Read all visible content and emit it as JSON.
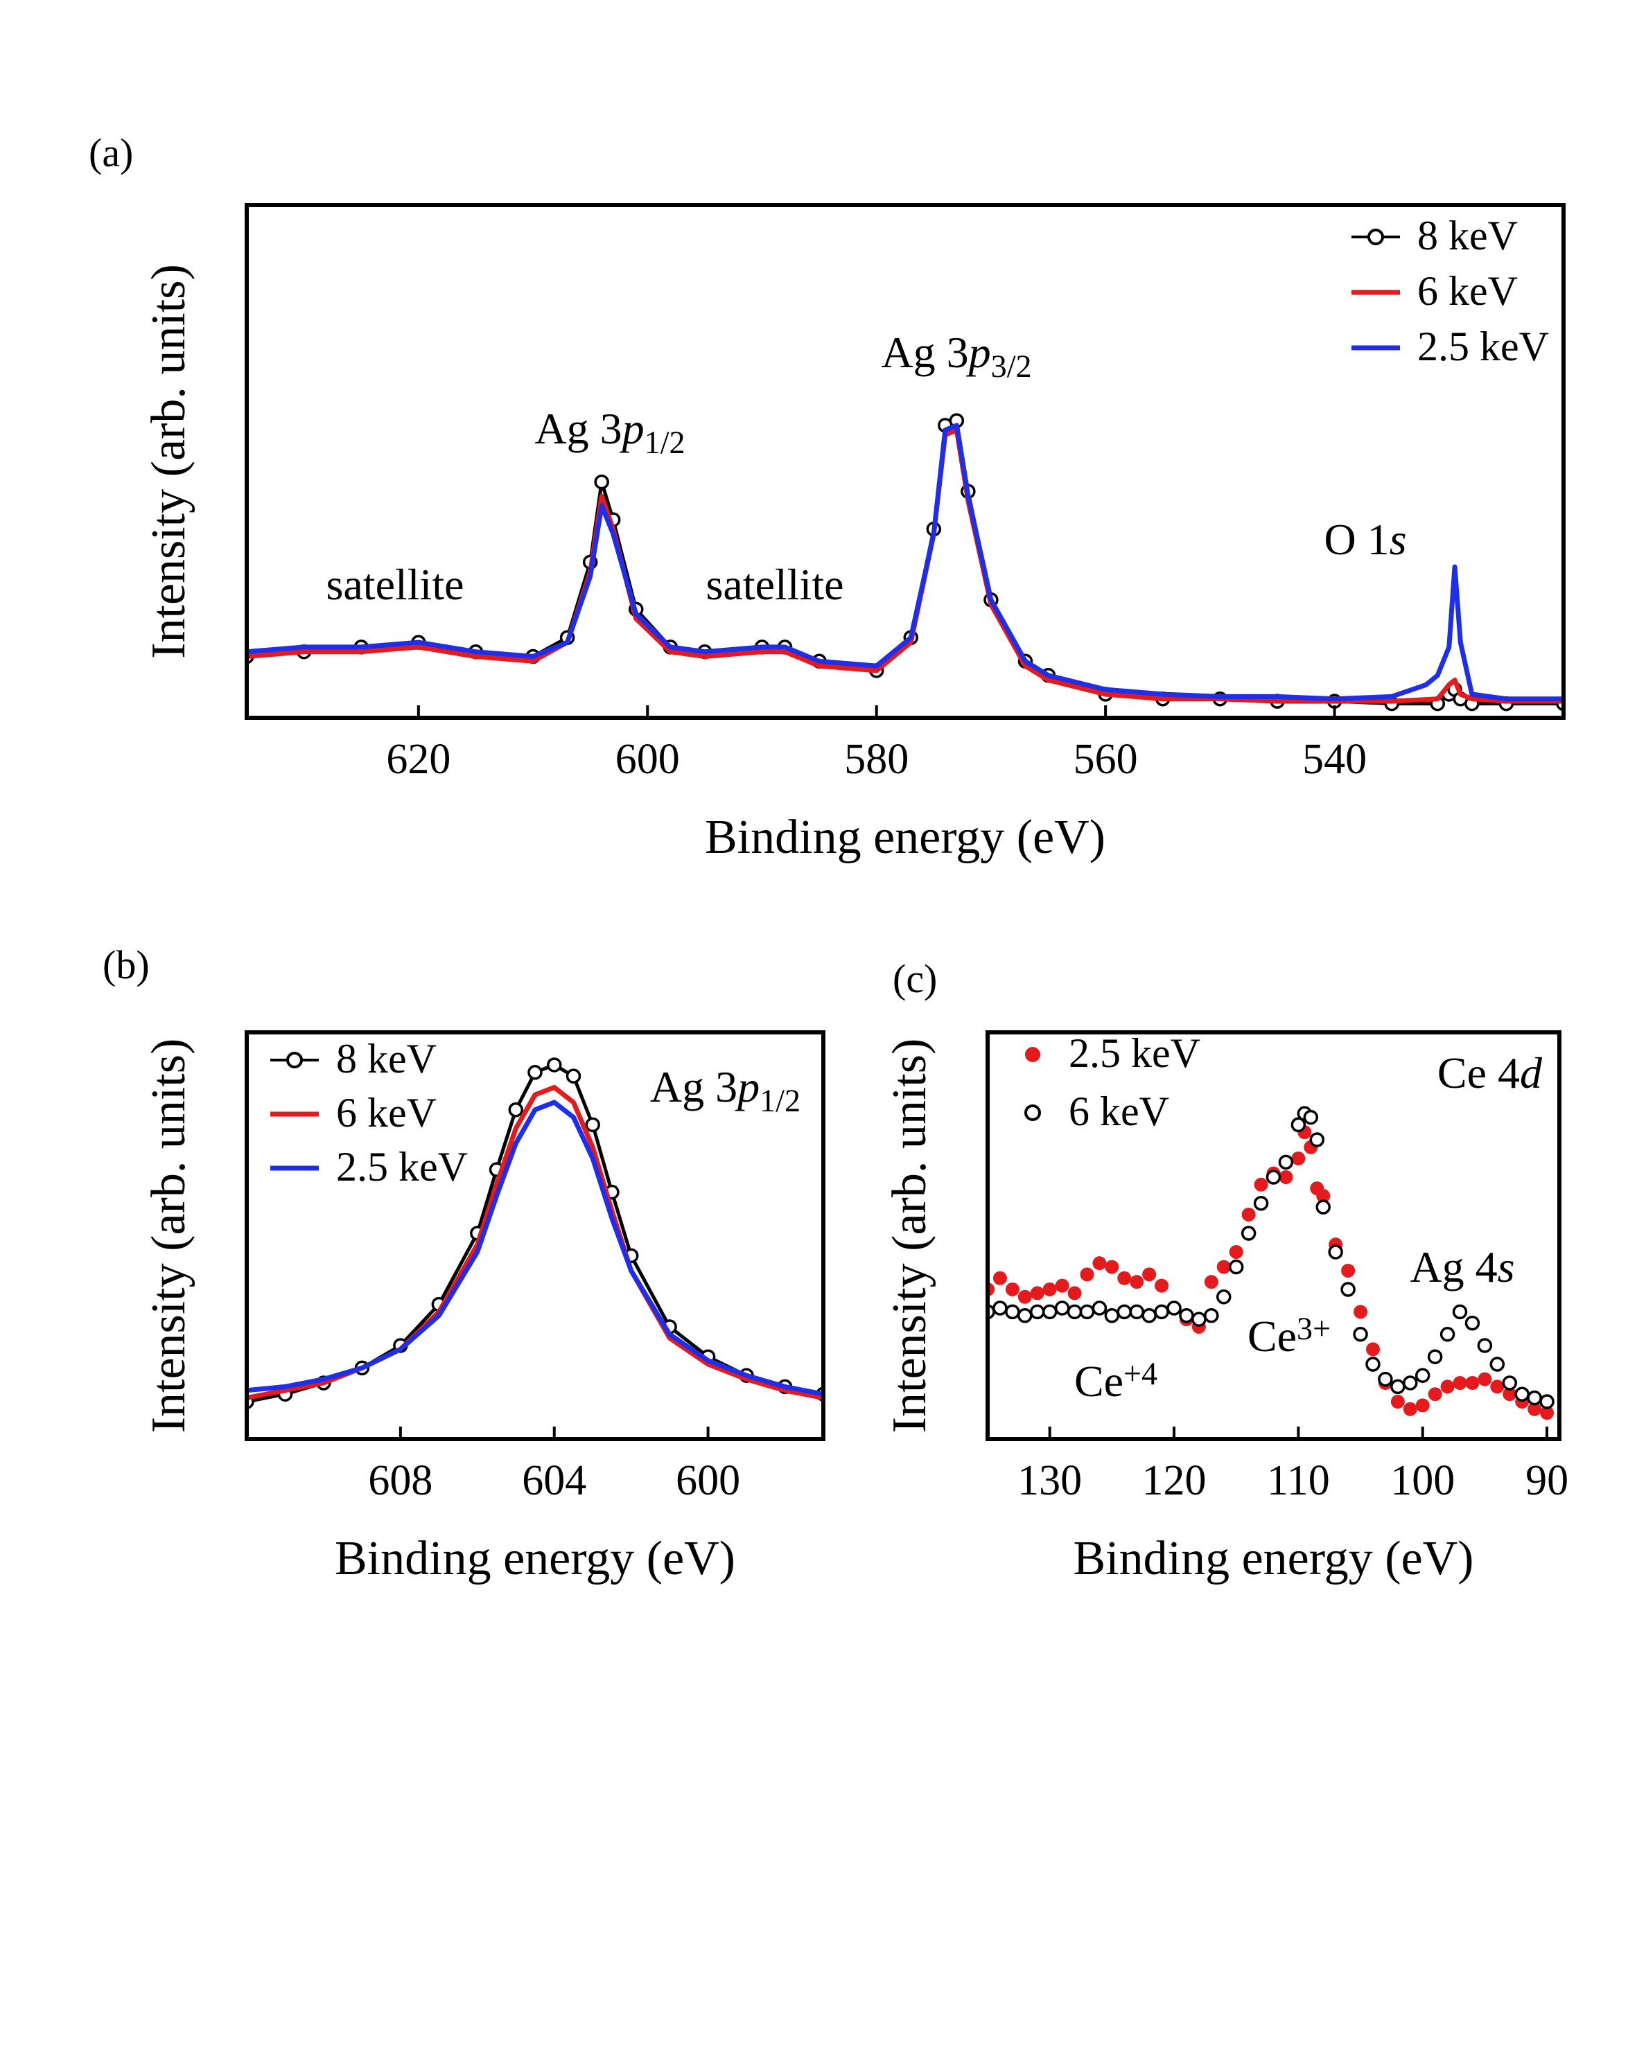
{
  "chart_data": [
    {
      "id": "a",
      "type": "line",
      "panel_label": "(a)",
      "xlabel": "Binding energy (eV)",
      "ylabel": "Intensity (arb. units)",
      "xlim": [
        635,
        520
      ],
      "ylim": [
        0,
        1
      ],
      "x_ticks": [
        620,
        600,
        580,
        560,
        540
      ],
      "x_tick_labels": [
        "620",
        "600",
        "580",
        "560",
        "540"
      ],
      "legend_position": "top-right",
      "series": [
        {
          "name": "8 keV",
          "label": "8 keV",
          "color": "#000000",
          "style": "open-circles-line",
          "x": [
            635,
            630,
            625,
            620,
            615,
            610,
            607,
            605,
            604,
            603,
            601,
            598,
            595,
            590,
            588,
            585,
            580,
            577,
            575,
            574,
            573,
            572,
            570,
            567,
            565,
            560,
            555,
            550,
            545,
            540,
            535,
            531,
            530,
            529.5,
            529,
            528,
            525,
            520
          ],
          "y": [
            0.13,
            0.14,
            0.15,
            0.16,
            0.14,
            0.13,
            0.17,
            0.33,
            0.5,
            0.42,
            0.23,
            0.15,
            0.14,
            0.15,
            0.15,
            0.12,
            0.1,
            0.17,
            0.4,
            0.62,
            0.63,
            0.48,
            0.25,
            0.12,
            0.09,
            0.05,
            0.04,
            0.04,
            0.035,
            0.035,
            0.03,
            0.03,
            0.05,
            0.06,
            0.04,
            0.03,
            0.03,
            0.03
          ]
        },
        {
          "name": "6 keV",
          "label": "6 keV",
          "color": "#e41a1c",
          "style": "line",
          "x": [
            635,
            630,
            625,
            620,
            615,
            610,
            607,
            605,
            604,
            603,
            601,
            598,
            595,
            590,
            588,
            585,
            580,
            577,
            575,
            574,
            573,
            572,
            570,
            567,
            565,
            560,
            555,
            550,
            545,
            540,
            535,
            531,
            530,
            529.5,
            529,
            528,
            525,
            520
          ],
          "y": [
            0.13,
            0.14,
            0.14,
            0.15,
            0.13,
            0.12,
            0.16,
            0.31,
            0.47,
            0.4,
            0.21,
            0.14,
            0.13,
            0.14,
            0.14,
            0.11,
            0.1,
            0.16,
            0.39,
            0.6,
            0.61,
            0.46,
            0.24,
            0.11,
            0.08,
            0.05,
            0.04,
            0.04,
            0.035,
            0.035,
            0.035,
            0.04,
            0.07,
            0.08,
            0.05,
            0.04,
            0.035,
            0.035
          ]
        },
        {
          "name": "2.5 keV",
          "label": "2.5 keV",
          "color": "#1f2ee8",
          "style": "line",
          "x": [
            635,
            630,
            625,
            620,
            615,
            610,
            607,
            605,
            604,
            603,
            601,
            598,
            595,
            590,
            588,
            585,
            580,
            577,
            575,
            574,
            573,
            572,
            570,
            567,
            565,
            560,
            555,
            550,
            545,
            540,
            535,
            532,
            531,
            530,
            529.5,
            529,
            528,
            525,
            520
          ],
          "y": [
            0.14,
            0.15,
            0.15,
            0.16,
            0.14,
            0.13,
            0.16,
            0.3,
            0.45,
            0.39,
            0.22,
            0.15,
            0.14,
            0.15,
            0.15,
            0.12,
            0.11,
            0.17,
            0.39,
            0.61,
            0.62,
            0.47,
            0.25,
            0.12,
            0.09,
            0.06,
            0.05,
            0.045,
            0.045,
            0.04,
            0.045,
            0.07,
            0.09,
            0.15,
            0.32,
            0.16,
            0.05,
            0.04,
            0.04
          ]
        }
      ],
      "annotations": [
        {
          "text": "satellite",
          "x": 620,
          "y": 0.22
        },
        {
          "text": "Ag 3",
          "italic": "p",
          "sub": "1/2",
          "x": 604,
          "y": 0.55
        },
        {
          "text": "satellite",
          "x": 587,
          "y": 0.22
        },
        {
          "text": "Ag 3",
          "italic": "p",
          "sub": "3/2",
          "x": 573,
          "y": 0.69
        },
        {
          "text": "O 1",
          "italic": "s",
          "x": 533,
          "y": 0.33
        }
      ]
    },
    {
      "id": "b",
      "type": "line",
      "panel_label": "(b)",
      "xlabel": "Binding energy (eV)",
      "ylabel": "Intensity (arb. units)",
      "xlim": [
        612,
        597
      ],
      "ylim": [
        0,
        1
      ],
      "x_ticks": [
        608,
        604,
        600
      ],
      "x_tick_labels": [
        "608",
        "604",
        "600"
      ],
      "legend_position": "top-left",
      "title_annotation": {
        "text": "Ag 3",
        "italic": "p",
        "sub": "1/2"
      },
      "series": [
        {
          "name": "8 keV",
          "label": "8 keV",
          "color": "#000000",
          "style": "open-circles-line",
          "x": [
            612,
            611,
            610,
            609,
            608,
            607,
            606,
            605.5,
            605,
            604.5,
            604,
            603.5,
            603,
            602.5,
            602,
            601,
            600,
            599,
            598,
            597
          ],
          "y": [
            0.1,
            0.12,
            0.15,
            0.19,
            0.25,
            0.36,
            0.55,
            0.72,
            0.88,
            0.98,
            1.0,
            0.97,
            0.84,
            0.66,
            0.49,
            0.3,
            0.22,
            0.17,
            0.14,
            0.12
          ]
        },
        {
          "name": "6 keV",
          "label": "6 keV",
          "color": "#e41a1c",
          "style": "line",
          "x": [
            612,
            611,
            610,
            609,
            608,
            607,
            606,
            605.5,
            605,
            604.5,
            604,
            603.5,
            603,
            602.5,
            602,
            601,
            600,
            599,
            598,
            597
          ],
          "y": [
            0.11,
            0.13,
            0.15,
            0.19,
            0.24,
            0.34,
            0.52,
            0.68,
            0.83,
            0.92,
            0.94,
            0.9,
            0.78,
            0.61,
            0.45,
            0.27,
            0.2,
            0.16,
            0.13,
            0.11
          ]
        },
        {
          "name": "2.5 keV",
          "label": "2.5 keV",
          "color": "#1f2ee8",
          "style": "line",
          "x": [
            612,
            611,
            610,
            609,
            608,
            607,
            606,
            605.5,
            605,
            604.5,
            604,
            603.5,
            603,
            602.5,
            602,
            601,
            600,
            599,
            598,
            597
          ],
          "y": [
            0.13,
            0.14,
            0.16,
            0.19,
            0.24,
            0.33,
            0.5,
            0.65,
            0.79,
            0.88,
            0.9,
            0.86,
            0.75,
            0.59,
            0.45,
            0.28,
            0.21,
            0.17,
            0.14,
            0.12
          ]
        }
      ]
    },
    {
      "id": "c",
      "type": "scatter",
      "panel_label": "(c)",
      "xlabel": "Binding energy (eV)",
      "ylabel": "Intensity (arb. units)",
      "xlim": [
        135,
        89
      ],
      "ylim": [
        0,
        1
      ],
      "x_ticks": [
        130,
        120,
        110,
        100,
        90
      ],
      "x_tick_labels": [
        "130",
        "120",
        "110",
        "100",
        "90"
      ],
      "legend_position": "top-left",
      "title_annotation": {
        "text": "Ce 4",
        "italic": "d"
      },
      "series": [
        {
          "name": "2.5 keV",
          "label": "2.5 keV",
          "color": "#e41a1c",
          "style": "filled-circles",
          "x": [
            135,
            134,
            133,
            132,
            131,
            130,
            129,
            128,
            127,
            126,
            125,
            124,
            123,
            122,
            121,
            120,
            119,
            118,
            117,
            116,
            115,
            114,
            113,
            112,
            111,
            110,
            109.5,
            109,
            108.5,
            108,
            107,
            106,
            105,
            104,
            103,
            102,
            101,
            100,
            99,
            98,
            97,
            96,
            95,
            94,
            93,
            92,
            91,
            90
          ],
          "y": [
            0.4,
            0.43,
            0.4,
            0.38,
            0.39,
            0.4,
            0.41,
            0.39,
            0.44,
            0.47,
            0.46,
            0.43,
            0.42,
            0.44,
            0.41,
            0.35,
            0.32,
            0.3,
            0.42,
            0.46,
            0.5,
            0.6,
            0.68,
            0.71,
            0.7,
            0.75,
            0.82,
            0.78,
            0.67,
            0.65,
            0.52,
            0.45,
            0.34,
            0.24,
            0.15,
            0.1,
            0.08,
            0.09,
            0.12,
            0.14,
            0.15,
            0.15,
            0.16,
            0.14,
            0.12,
            0.1,
            0.08,
            0.07
          ]
        },
        {
          "name": "6 keV",
          "label": "6 keV",
          "color": "#000000",
          "style": "open-circles",
          "x": [
            135,
            134,
            133,
            132,
            131,
            130,
            129,
            128,
            127,
            126,
            125,
            124,
            123,
            122,
            121,
            120,
            119,
            118,
            117,
            116,
            115,
            114,
            113,
            112,
            111,
            110,
            109.5,
            109,
            108.5,
            108,
            107,
            106,
            105,
            104,
            103,
            102,
            101,
            100,
            99,
            98,
            97,
            96,
            95,
            94,
            93,
            92,
            91,
            90
          ],
          "y": [
            0.34,
            0.35,
            0.34,
            0.33,
            0.34,
            0.34,
            0.35,
            0.34,
            0.34,
            0.35,
            0.33,
            0.34,
            0.34,
            0.33,
            0.34,
            0.35,
            0.33,
            0.32,
            0.33,
            0.38,
            0.46,
            0.55,
            0.63,
            0.7,
            0.74,
            0.84,
            0.87,
            0.86,
            0.8,
            0.62,
            0.5,
            0.4,
            0.28,
            0.2,
            0.16,
            0.14,
            0.15,
            0.17,
            0.22,
            0.28,
            0.34,
            0.31,
            0.25,
            0.2,
            0.15,
            0.12,
            0.11,
            0.1
          ]
        }
      ],
      "annotations": [
        {
          "text": "Ce",
          "sup": "+4",
          "x": 126,
          "y": 0.12
        },
        {
          "text": "Ce",
          "sup": "3+",
          "x": 109,
          "y": 0.24
        },
        {
          "text": "Ag 4",
          "italic": "s",
          "x": 96,
          "y": 0.46
        }
      ]
    }
  ]
}
